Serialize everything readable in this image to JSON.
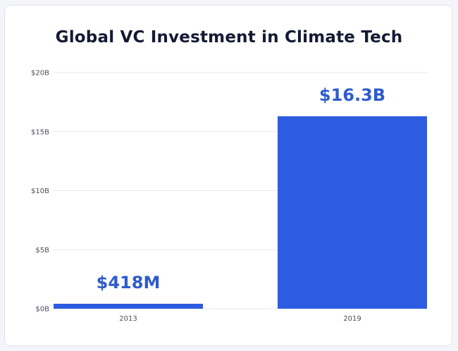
{
  "colors": {
    "bar": "#2e5ce0",
    "data_label": "#2e5ccc",
    "gridline": "#e6e9ef",
    "tick_text": "#4a4f5c",
    "title": "#141a33"
  },
  "chart_data": {
    "type": "bar",
    "title": "Global VC Investment in Climate Tech",
    "xlabel": "",
    "ylabel": "",
    "categories": [
      "2013",
      "2019"
    ],
    "values": [
      0.418,
      16.3
    ],
    "data_labels": [
      "$418M",
      "$16.3B"
    ],
    "unit": "billion USD",
    "ylim": [
      0,
      20
    ],
    "yticks": [
      0,
      5,
      10,
      15,
      20
    ],
    "ytick_labels": [
      "$0B",
      "$5B",
      "$10B",
      "$15B",
      "$20B"
    ],
    "grid": true,
    "legend": "none"
  }
}
